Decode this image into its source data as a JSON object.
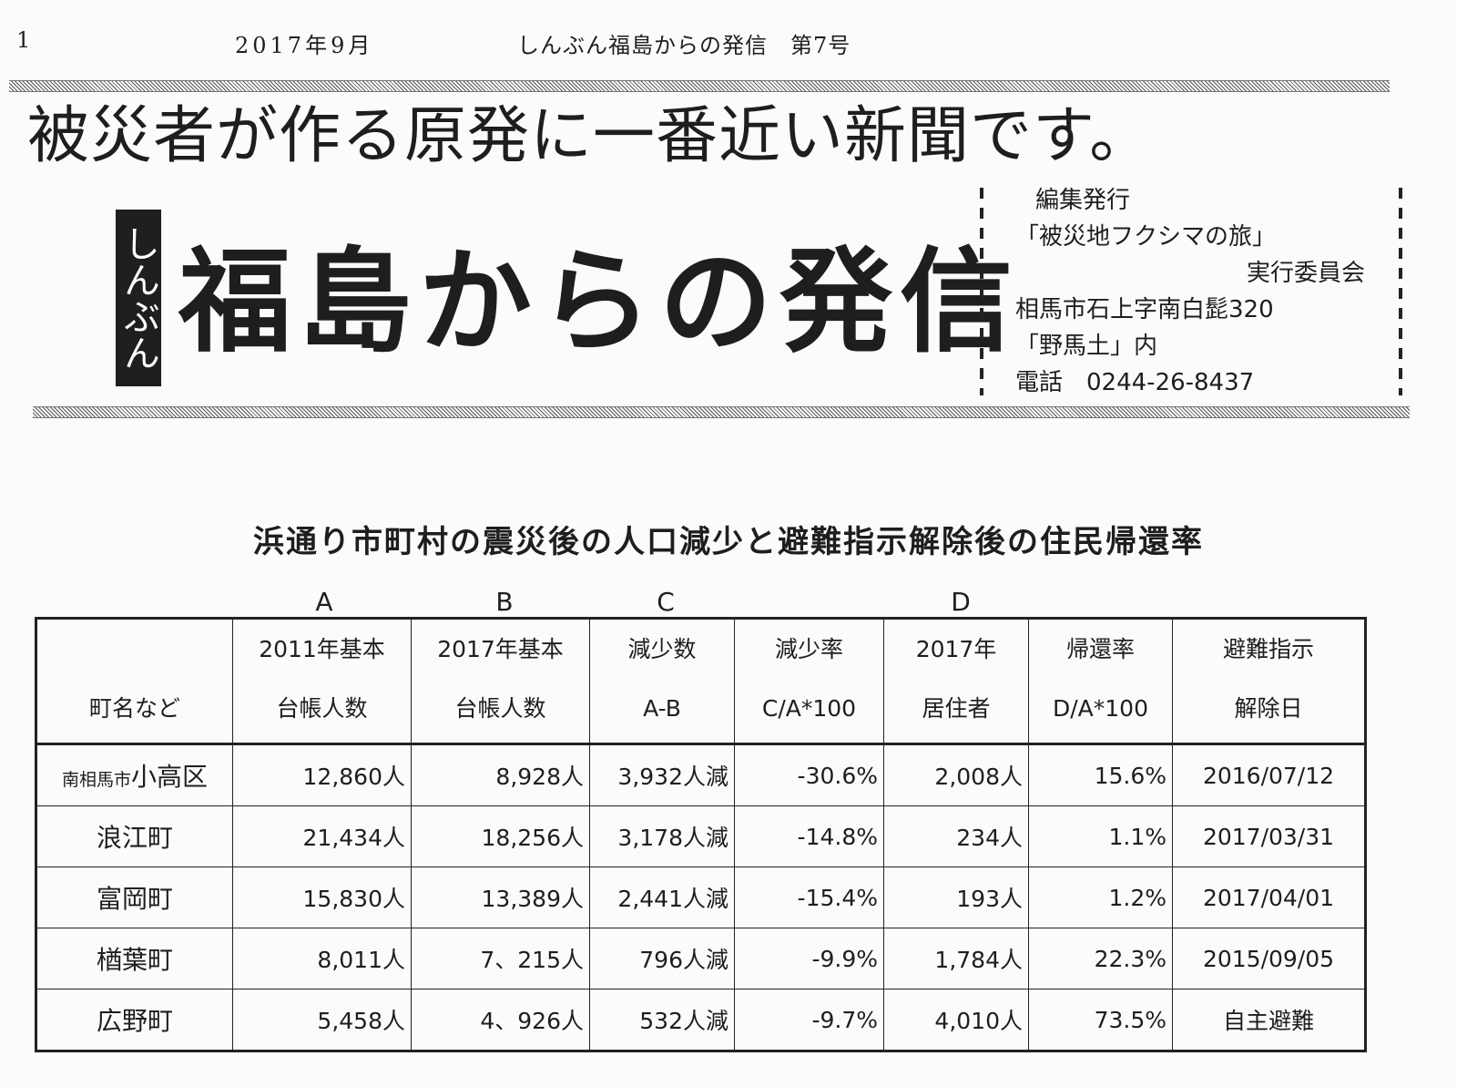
{
  "header": {
    "page_number": "1",
    "date": "2017年9月",
    "paper_issue": "しんぶん福島からの発信　第7号"
  },
  "tagline": "被災者が作る原発に一番近い新聞です。",
  "masthead": {
    "label": "しんぶん",
    "title": "福島からの発信"
  },
  "publisher": {
    "label": "編集発行",
    "org": "「被災地フクシマの旅」",
    "committee": "実行委員会",
    "address": "相馬市石上字南白髭320",
    "care_of": "「野馬土」内",
    "phone": "電話　0244-26-8437"
  },
  "table": {
    "title": "浜通り市町村の震災後の人口減少と避難指示解除後の住民帰還率",
    "column_letters": [
      "A",
      "B",
      "C",
      "D"
    ],
    "headers": [
      {
        "line1": "",
        "line2": "町名など"
      },
      {
        "line1": "2011年基本",
        "line2": "台帳人数"
      },
      {
        "line1": "2017年基本",
        "line2": "台帳人数"
      },
      {
        "line1": "減少数",
        "line2": "A-B"
      },
      {
        "line1": "減少率",
        "line2": "C/A*100"
      },
      {
        "line1": "2017年",
        "line2": "居住者"
      },
      {
        "line1": "帰還率",
        "line2": "D/A*100"
      },
      {
        "line1": "避難指示",
        "line2": "解除日"
      }
    ],
    "rows": [
      {
        "prefix": "南相馬市",
        "name": "小高区",
        "pop2011": "12,860人",
        "pop2017": "8,928人",
        "decrease": "3,932人減",
        "decrease_rate": "-30.6%",
        "residents2017": "2,008人",
        "return_rate": "15.6%",
        "lift_date": "2016/07/12"
      },
      {
        "prefix": "",
        "name": "浪江町",
        "pop2011": "21,434人",
        "pop2017": "18,256人",
        "decrease": "3,178人減",
        "decrease_rate": "-14.8%",
        "residents2017": "234人",
        "return_rate": "1.1%",
        "lift_date": "2017/03/31"
      },
      {
        "prefix": "",
        "name": "富岡町",
        "pop2011": "15,830人",
        "pop2017": "13,389人",
        "decrease": "2,441人減",
        "decrease_rate": "-15.4%",
        "residents2017": "193人",
        "return_rate": "1.2%",
        "lift_date": "2017/04/01"
      },
      {
        "prefix": "",
        "name": "楢葉町",
        "pop2011": "8,011人",
        "pop2017": "7、215人",
        "decrease": "796人減",
        "decrease_rate": "-9.9%",
        "residents2017": "1,784人",
        "return_rate": "22.3%",
        "lift_date": "2015/09/05"
      },
      {
        "prefix": "",
        "name": "広野町",
        "pop2011": "5,458人",
        "pop2017": "4、926人",
        "decrease": "532人減",
        "decrease_rate": "-9.7%",
        "residents2017": "4,010人",
        "return_rate": "73.5%",
        "lift_date": "自主避難"
      }
    ]
  }
}
